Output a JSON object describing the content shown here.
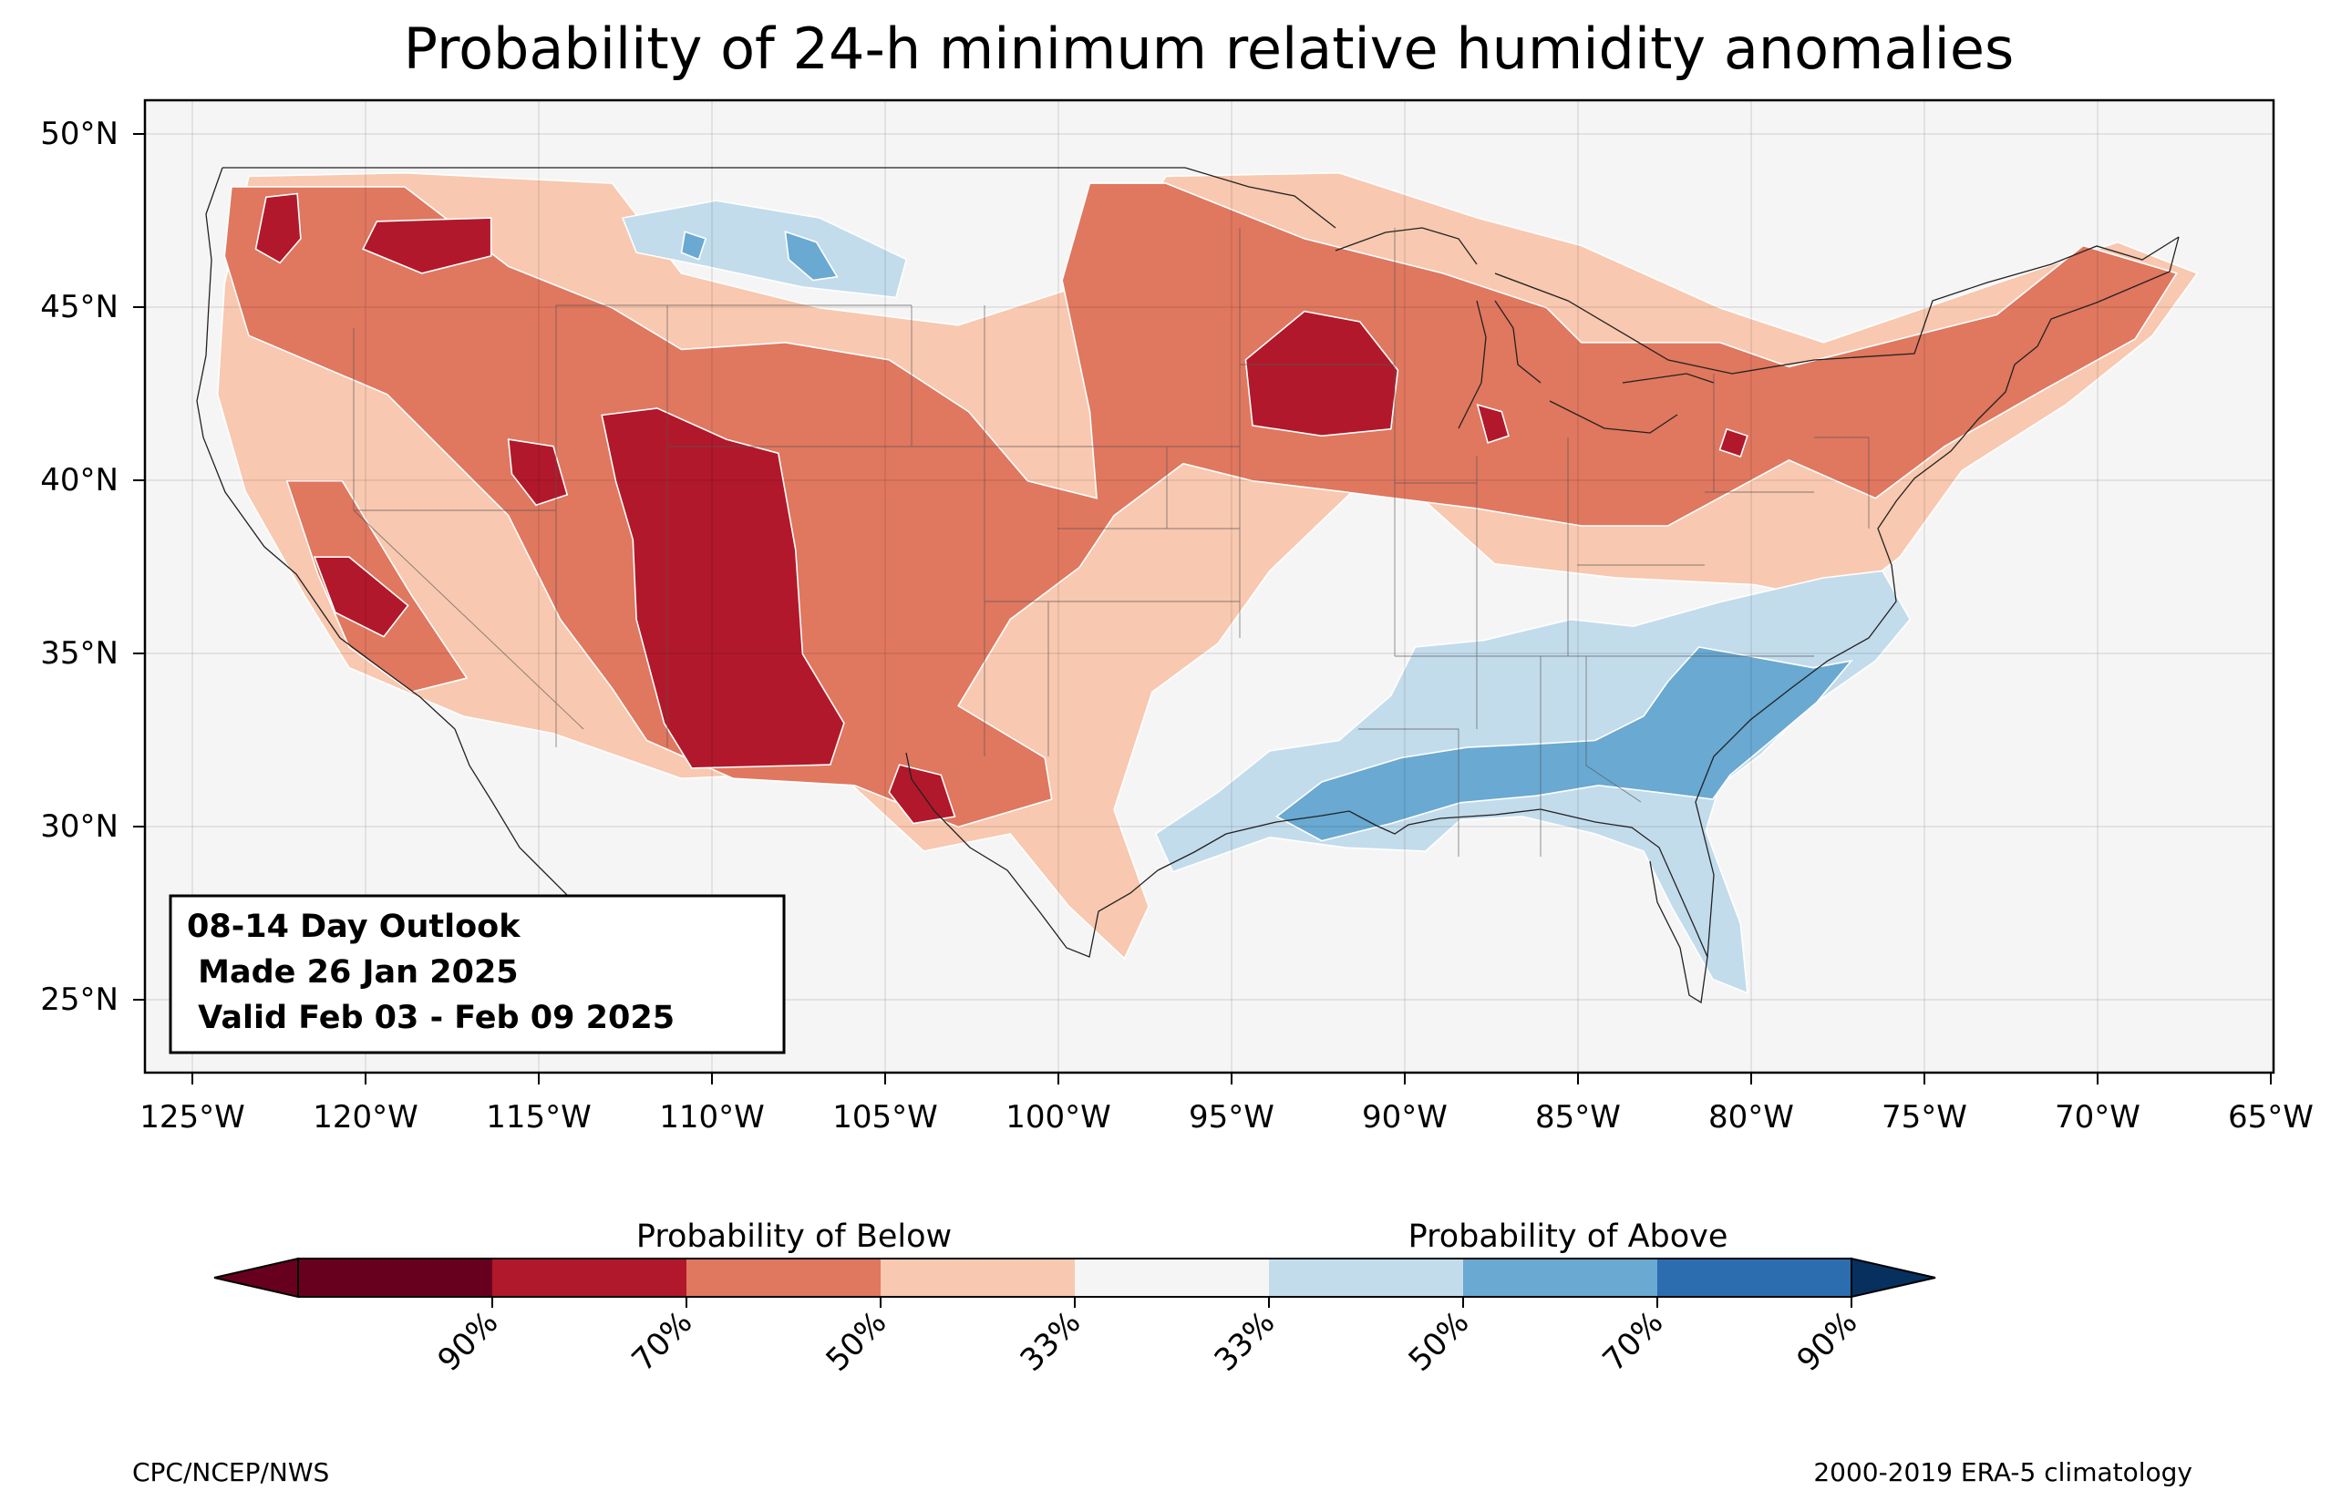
{
  "title": "Probability of 24-h minimum relative humidity anomalies",
  "map": {
    "region": "Contiguous United States",
    "projection": "PlateCarree",
    "lon_range": [
      -126.5,
      -65
    ],
    "lat_range": [
      22.9,
      51
    ],
    "lat_ticks": [
      {
        "value": 50,
        "label": "50°N"
      },
      {
        "value": 45,
        "label": "45°N"
      },
      {
        "value": 40,
        "label": "40°N"
      },
      {
        "value": 35,
        "label": "35°N"
      },
      {
        "value": 30,
        "label": "30°N"
      },
      {
        "value": 25,
        "label": "25°N"
      }
    ],
    "lon_ticks": [
      {
        "value": -125,
        "label": "125°W"
      },
      {
        "value": -120,
        "label": "120°W"
      },
      {
        "value": -115,
        "label": "115°W"
      },
      {
        "value": -110,
        "label": "110°W"
      },
      {
        "value": -105,
        "label": "105°W"
      },
      {
        "value": -100,
        "label": "100°W"
      },
      {
        "value": -95,
        "label": "95°W"
      },
      {
        "value": -90,
        "label": "90°W"
      },
      {
        "value": -85,
        "label": "85°W"
      },
      {
        "value": -80,
        "label": "80°W"
      },
      {
        "value": -75,
        "label": "75°W"
      },
      {
        "value": -70,
        "label": "70°W"
      },
      {
        "value": -65,
        "label": "65°W"
      }
    ],
    "grid": true,
    "ocean_color": "#f5f5f5"
  },
  "outlook_box": {
    "line1": "08-14 Day Outlook",
    "line2": " Made 26 Jan 2025",
    "line3": " Valid Feb 03 - Feb 09 2025"
  },
  "colorbar": {
    "below_label": "Probability of Below",
    "above_label": "Probability of Above",
    "colors": [
      "#67001f",
      "#b2182b",
      "#d6604d",
      "#f4a582",
      "#fddbc7",
      "#f7f7f7",
      "#d1e5f0",
      "#92c5de",
      "#4393c3",
      "#2166ac",
      "#053061"
    ],
    "bin_colors": [
      "#67001f",
      "#b2182b",
      "#e0775f",
      "#f8c8b0",
      "#f5f5f5",
      "#c3dcec",
      "#69a9d2",
      "#2c6db0",
      "#07305e"
    ],
    "tick_labels": [
      "90%",
      "70%",
      "50%",
      "33%",
      "33%",
      "50%",
      "70%",
      "90%"
    ]
  },
  "footer": {
    "left": "CPC/NCEP/NWS",
    "right": "2000-2019 ERA-5 climatology"
  },
  "regions": [
    {
      "category": "below-33",
      "color": "#f8c8b0",
      "points": [
        [
          -123.5,
          48.8
        ],
        [
          -119,
          48.9
        ],
        [
          -113,
          48.6
        ],
        [
          -111,
          46
        ],
        [
          -107,
          45
        ],
        [
          -103,
          44.5
        ],
        [
          -99,
          45.8
        ],
        [
          -97,
          48.8
        ],
        [
          -92,
          48.9
        ],
        [
          -88,
          47.6
        ],
        [
          -85,
          46.8
        ],
        [
          -81,
          45
        ],
        [
          -78,
          44
        ],
        [
          -74.5,
          45.2
        ],
        [
          -69.5,
          46.9
        ],
        [
          -67.2,
          46
        ],
        [
          -68.5,
          44.2
        ],
        [
          -71,
          42.2
        ],
        [
          -74,
          40.3
        ],
        [
          -75.8,
          37.8
        ],
        [
          -77.5,
          36.5
        ],
        [
          -80,
          37
        ],
        [
          -84,
          37.2
        ],
        [
          -87.5,
          37.6
        ],
        [
          -89.5,
          39.4
        ],
        [
          -91.5,
          39.8
        ],
        [
          -94,
          37.4
        ],
        [
          -95.5,
          35.3
        ],
        [
          -97.4,
          33.9
        ],
        [
          -98.5,
          30.5
        ],
        [
          -97.5,
          27.7
        ],
        [
          -98.2,
          26.2
        ],
        [
          -99.8,
          27.7
        ],
        [
          -101.5,
          29.8
        ],
        [
          -104,
          29.3
        ],
        [
          -106.5,
          31.6
        ],
        [
          -111,
          31.4
        ],
        [
          -114.7,
          32.7
        ],
        [
          -117.3,
          33.2
        ],
        [
          -120.6,
          34.6
        ],
        [
          -121.9,
          36.7
        ],
        [
          -123.6,
          39.7
        ],
        [
          -124.4,
          42.5
        ],
        [
          -124.2,
          45.7
        ]
      ]
    },
    {
      "category": "below-50",
      "color": "#e0775f",
      "points": [
        [
          -124,
          48.5
        ],
        [
          -119,
          48.5
        ],
        [
          -116,
          46.2
        ],
        [
          -113,
          45
        ],
        [
          -111,
          43.8
        ],
        [
          -108,
          44
        ],
        [
          -105,
          43.5
        ],
        [
          -102.7,
          42
        ],
        [
          -101,
          40
        ],
        [
          -99,
          39.5
        ],
        [
          -99.2,
          42
        ],
        [
          -100,
          45.8
        ],
        [
          -99.2,
          48.6
        ],
        [
          -97,
          48.6
        ],
        [
          -93,
          47
        ],
        [
          -89,
          46
        ],
        [
          -86,
          45
        ],
        [
          -85,
          44
        ],
        [
          -83,
          44
        ],
        [
          -81,
          44
        ],
        [
          -79,
          43.3
        ],
        [
          -75,
          44.3
        ],
        [
          -73,
          44.8
        ],
        [
          -70.5,
          46.8
        ],
        [
          -67.8,
          46
        ],
        [
          -69,
          44.1
        ],
        [
          -71.7,
          42.6
        ],
        [
          -74.5,
          41
        ],
        [
          -76.5,
          39.5
        ],
        [
          -79,
          40.6
        ],
        [
          -82.5,
          38.7
        ],
        [
          -85,
          38.7
        ],
        [
          -88,
          39.2
        ],
        [
          -92,
          39.7
        ],
        [
          -94.5,
          40
        ],
        [
          -96.5,
          40.5
        ],
        [
          -98.5,
          39
        ],
        [
          -99.5,
          37.5
        ],
        [
          -101.5,
          36
        ],
        [
          -103,
          33.5
        ],
        [
          -100.5,
          32
        ],
        [
          -100.3,
          30.8
        ],
        [
          -103,
          30
        ],
        [
          -106,
          31.2
        ],
        [
          -109.5,
          31.4
        ],
        [
          -112,
          32.5
        ],
        [
          -113,
          34
        ],
        [
          -114.5,
          36
        ],
        [
          -116,
          39
        ],
        [
          -118,
          41
        ],
        [
          -119.5,
          42.5
        ],
        [
          -123.5,
          44.2
        ],
        [
          -124.2,
          46.5
        ]
      ]
    },
    {
      "category": "below-50",
      "color": "#e0775f",
      "points": [
        [
          -122.4,
          40
        ],
        [
          -120.8,
          40
        ],
        [
          -118.8,
          36.7
        ],
        [
          -117.2,
          34.3
        ],
        [
          -118.8,
          33.9
        ],
        [
          -120.6,
          35.2
        ],
        [
          -121.5,
          37.3
        ]
      ]
    },
    {
      "category": "below-70",
      "color": "#b2182b",
      "points": [
        [
          -123,
          48.2
        ],
        [
          -122.1,
          48.3
        ],
        [
          -122,
          47
        ],
        [
          -122.6,
          46.3
        ],
        [
          -123.3,
          46.7
        ]
      ]
    },
    {
      "category": "below-70",
      "color": "#b2182b",
      "points": [
        [
          -119.8,
          47.5
        ],
        [
          -116.5,
          47.6
        ],
        [
          -116.5,
          46.5
        ],
        [
          -118.5,
          46
        ],
        [
          -120.2,
          46.7
        ]
      ]
    },
    {
      "category": "below-70",
      "color": "#b2182b",
      "points": [
        [
          -113.3,
          41.9
        ],
        [
          -111.7,
          42.1
        ],
        [
          -109.7,
          41.2
        ],
        [
          -108.2,
          40.8
        ],
        [
          -107.7,
          38
        ],
        [
          -107.5,
          35
        ],
        [
          -106.3,
          33
        ],
        [
          -106.7,
          31.8
        ],
        [
          -110.7,
          31.7
        ],
        [
          -111.5,
          33
        ],
        [
          -112.3,
          36
        ],
        [
          -112.4,
          38.3
        ],
        [
          -112.9,
          40
        ]
      ]
    },
    {
      "category": "below-70",
      "color": "#b2182b",
      "points": [
        [
          -121.6,
          37.8
        ],
        [
          -120.6,
          37.8
        ],
        [
          -118.9,
          36.4
        ],
        [
          -119.6,
          35.5
        ],
        [
          -121,
          36.2
        ]
      ]
    },
    {
      "category": "below-70",
      "color": "#b2182b",
      "points": [
        [
          -93,
          44.9
        ],
        [
          -91.4,
          44.6
        ],
        [
          -90.3,
          43.2
        ],
        [
          -90.5,
          41.5
        ],
        [
          -92.5,
          41.3
        ],
        [
          -94.5,
          41.6
        ],
        [
          -94.7,
          43.5
        ]
      ]
    },
    {
      "category": "below-70",
      "color": "#b2182b",
      "points": [
        [
          -116,
          41.2
        ],
        [
          -114.7,
          41
        ],
        [
          -114.3,
          39.6
        ],
        [
          -115.2,
          39.3
        ],
        [
          -115.9,
          40.2
        ]
      ]
    },
    {
      "category": "below-70",
      "color": "#b2182b",
      "points": [
        [
          -104.7,
          31.8
        ],
        [
          -103.5,
          31.5
        ],
        [
          -103.1,
          30.3
        ],
        [
          -104.3,
          30.1
        ],
        [
          -105,
          31
        ]
      ]
    },
    {
      "category": "below-70",
      "color": "#b2182b",
      "points": [
        [
          -88,
          42.2
        ],
        [
          -87.3,
          42
        ],
        [
          -87.1,
          41.3
        ],
        [
          -87.7,
          41.1
        ]
      ]
    },
    {
      "category": "below-70",
      "color": "#b2182b",
      "points": [
        [
          -80.8,
          41.5
        ],
        [
          -80.2,
          41.3
        ],
        [
          -80.4,
          40.7
        ],
        [
          -81,
          40.9
        ]
      ]
    },
    {
      "category": "above-33",
      "color": "#c3dcec",
      "points": [
        [
          -76.3,
          37.4
        ],
        [
          -75.5,
          36
        ],
        [
          -76.5,
          34.8
        ],
        [
          -78.5,
          33.4
        ],
        [
          -79.8,
          32.1
        ],
        [
          -81,
          31.2
        ],
        [
          -81.4,
          29.9
        ],
        [
          -80.4,
          27.2
        ],
        [
          -80.2,
          25.2
        ],
        [
          -81.2,
          25.6
        ],
        [
          -82.4,
          27.7
        ],
        [
          -83.2,
          29.3
        ],
        [
          -84.6,
          29.8
        ],
        [
          -86.7,
          30.3
        ],
        [
          -88.5,
          30.2
        ],
        [
          -89.5,
          29.3
        ],
        [
          -91.8,
          29.4
        ],
        [
          -94,
          29.7
        ],
        [
          -95.4,
          29.2
        ],
        [
          -96.8,
          28.7
        ],
        [
          -97.3,
          29.8
        ],
        [
          -95.5,
          31
        ],
        [
          -94,
          32.2
        ],
        [
          -92,
          32.5
        ],
        [
          -90.5,
          33.8
        ],
        [
          -89.8,
          35.2
        ],
        [
          -87.8,
          35.4
        ],
        [
          -85.3,
          36
        ],
        [
          -83.5,
          35.8
        ],
        [
          -81,
          36.5
        ],
        [
          -78,
          37.2
        ]
      ]
    },
    {
      "category": "above-50",
      "color": "#69a9d2",
      "points": [
        [
          -81.6,
          35.2
        ],
        [
          -78.3,
          34.6
        ],
        [
          -77.2,
          34.8
        ],
        [
          -78.2,
          33.6
        ],
        [
          -79.5,
          32.5
        ],
        [
          -80.7,
          31.5
        ],
        [
          -81.2,
          30.8
        ],
        [
          -82.8,
          31
        ],
        [
          -84.5,
          31.2
        ],
        [
          -86.3,
          30.9
        ],
        [
          -88.5,
          30.7
        ],
        [
          -90.5,
          30.1
        ],
        [
          -92.5,
          29.6
        ],
        [
          -93.8,
          30.3
        ],
        [
          -92.5,
          31.3
        ],
        [
          -90.2,
          32
        ],
        [
          -88.3,
          32.3
        ],
        [
          -86.3,
          32.4
        ],
        [
          -84.6,
          32.5
        ],
        [
          -83.2,
          33.2
        ],
        [
          -82.5,
          34.2
        ]
      ]
    },
    {
      "category": "above-33",
      "color": "#c3dcec",
      "points": [
        [
          -112.7,
          47.6
        ],
        [
          -110,
          48.1
        ],
        [
          -107,
          47.6
        ],
        [
          -104.5,
          46.4
        ],
        [
          -104.8,
          45.3
        ],
        [
          -107.5,
          45.6
        ],
        [
          -110.3,
          46.2
        ],
        [
          -112.3,
          46.6
        ]
      ]
    },
    {
      "category": "above-50",
      "color": "#69a9d2",
      "points": [
        [
          -108,
          47.2
        ],
        [
          -107.1,
          46.9
        ],
        [
          -106.5,
          45.9
        ],
        [
          -107.2,
          45.8
        ],
        [
          -107.9,
          46.4
        ]
      ]
    },
    {
      "category": "above-50",
      "color": "#69a9d2",
      "points": [
        [
          -110.9,
          47.2
        ],
        [
          -110.3,
          47
        ],
        [
          -110.5,
          46.4
        ],
        [
          -111,
          46.6
        ]
      ]
    }
  ]
}
